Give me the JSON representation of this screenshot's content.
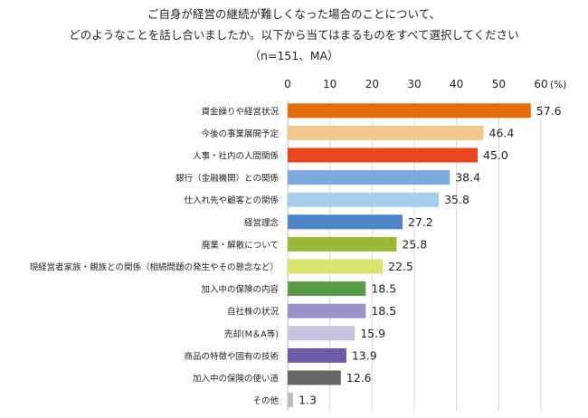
{
  "chart_data": {
    "type": "bar",
    "orientation": "horizontal",
    "title_lines": [
      "ご自身が経営の継続が難しくなった場合のことについて、",
      "どのようなことを話し合いましたか。以下から当てはまるものをすべて選択してください",
      "（n=151、MA）"
    ],
    "unit": "(%)",
    "xlim": [
      0,
      60
    ],
    "xticks": [
      0,
      10,
      20,
      30,
      40,
      50,
      60
    ],
    "grid": true,
    "legend": "none",
    "categories": [
      "資金繰りや経営状況",
      "今後の事業展開予定",
      "人事・社内の人間関係",
      "銀行（金融機関）との関係",
      "仕入れ先や顧客との関係",
      "経営理念",
      "廃業・解散について",
      "現経営者家族・親族との関係（相続問題の発生やその懸念など）",
      "加入中の保険の内容",
      "自社株の状況",
      "売却(M＆A等)",
      "商品の特徴や固有の技術",
      "加入中の保険の使い道",
      "その他"
    ],
    "values": [
      57.6,
      46.4,
      45.0,
      38.4,
      35.8,
      27.2,
      25.8,
      22.5,
      18.5,
      18.5,
      15.9,
      13.9,
      12.6,
      1.3
    ],
    "value_labels": [
      "57.6",
      "46.4",
      "45.0",
      "38.4",
      "35.8",
      "27.2",
      "25.8",
      "22.5",
      "18.5",
      "18.5",
      "15.9",
      "13.9",
      "12.6",
      "1.3"
    ],
    "colors": [
      "#E46C0A",
      "#F0C890",
      "#E8461E",
      "#7BA9DC",
      "#A6CDED",
      "#4F85C6",
      "#9AB83A",
      "#D8E46C",
      "#5A9A4A",
      "#9C92C6",
      "#C8C2E0",
      "#6B5CA5",
      "#666666",
      "#BFBFBF"
    ]
  }
}
